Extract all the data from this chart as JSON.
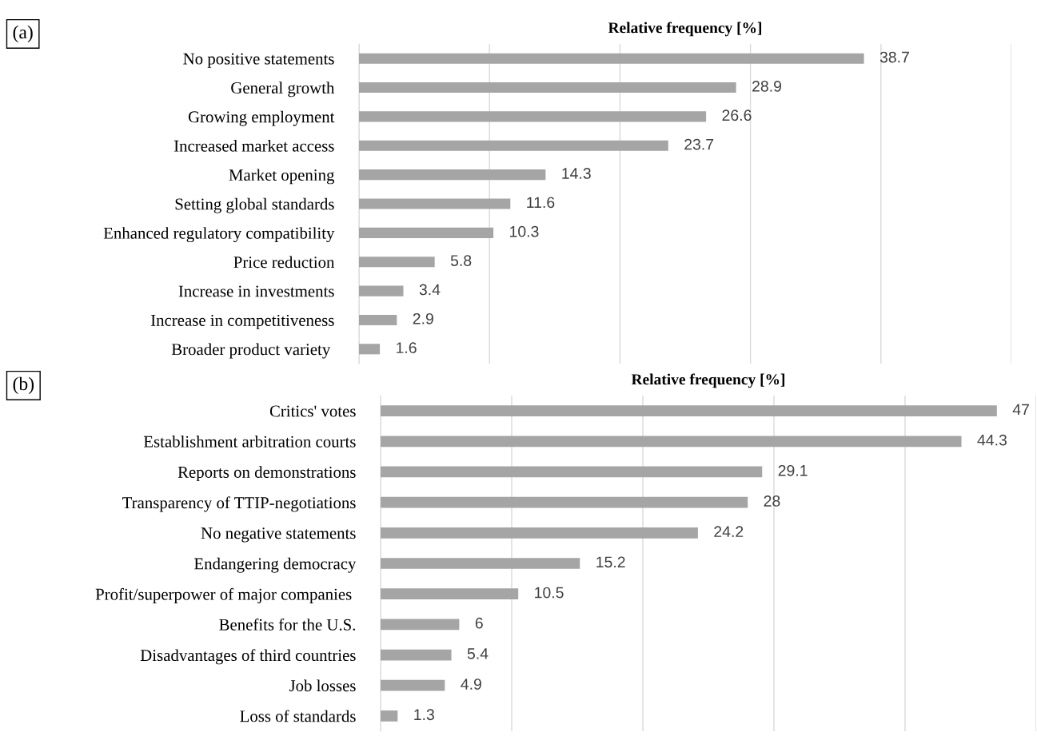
{
  "chart_data": [
    {
      "type": "bar",
      "orientation": "horizontal",
      "title": "Relative frequency [%]",
      "annotations": [
        "(a)"
      ],
      "categories": [
        "No positive statements",
        "General growth",
        "Growing employment",
        "Increased market access",
        "Market opening",
        "Setting global standards",
        "Enhanced regulatory compatibility",
        "Price reduction",
        "Increase in investments",
        "Increase in competitiveness",
        "Broader product variety "
      ],
      "values": [
        38.7,
        28.9,
        26.6,
        23.7,
        14.3,
        11.6,
        10.3,
        5.8,
        3.4,
        2.9,
        1.6
      ],
      "color": "#a5a5a5",
      "xlim": [
        0,
        50
      ],
      "xticks": [
        {
          "value": 0,
          "label": null
        },
        {
          "value": 10,
          "label": null
        },
        {
          "value": 20,
          "label": null
        },
        {
          "value": 30,
          "label": null
        },
        {
          "value": 40,
          "label": null
        },
        {
          "value": 50,
          "label": null
        }
      ],
      "grid": "x",
      "data_labels": true,
      "tick_labels": "y"
    },
    {
      "type": "bar",
      "orientation": "horizontal",
      "title": "Relative frequency [%]",
      "annotations": [
        "(b)"
      ],
      "categories": [
        "Critics' votes",
        "Establishment arbitration courts",
        "Reports on demonstrations",
        "Transparency of TTIP-negotiations",
        "No negative statements",
        "Endangering democracy",
        "Profit/superpower of major companies ",
        "Benefits for the U.S.",
        "Disadvantages of third countries",
        "Job losses",
        "Loss of standards"
      ],
      "values": [
        47,
        44.3,
        29.1,
        28,
        24.2,
        15.2,
        10.5,
        6,
        5.4,
        4.9,
        1.3
      ],
      "color": "#a5a5a5",
      "xlim": [
        0,
        50
      ],
      "xticks": [
        {
          "value": 0,
          "label": null
        },
        {
          "value": 10,
          "label": null
        },
        {
          "value": 20,
          "label": null
        },
        {
          "value": 30,
          "label": null
        },
        {
          "value": 40,
          "label": null
        },
        {
          "value": 50,
          "label": null
        }
      ],
      "grid": "x",
      "data_labels": true,
      "tick_labels": "y"
    }
  ]
}
